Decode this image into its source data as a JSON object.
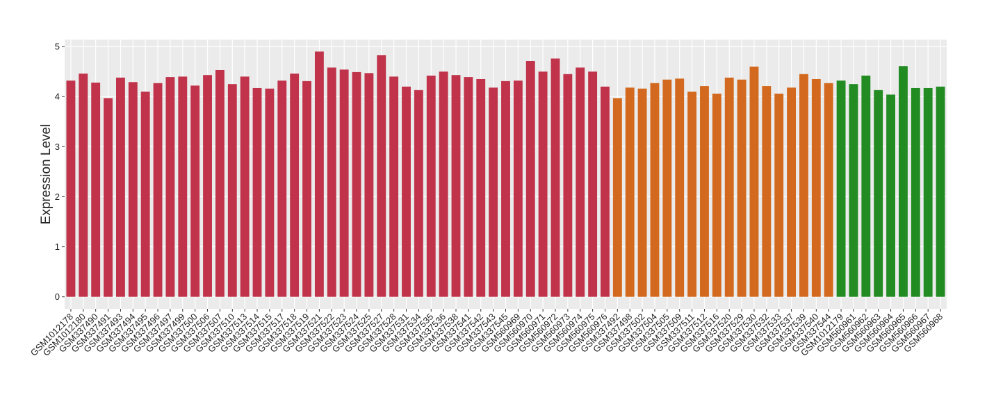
{
  "chart_data": {
    "type": "bar",
    "y_label": "Expression Level",
    "categories": [
      "GSM1012178",
      "GSM1012180",
      "GSM337490",
      "GSM337491",
      "GSM337493",
      "GSM337494",
      "GSM337495",
      "GSM337496",
      "GSM337497",
      "GSM337499",
      "GSM337500",
      "GSM337506",
      "GSM337507",
      "GSM337510",
      "GSM337513",
      "GSM337514",
      "GSM337515",
      "GSM337517",
      "GSM337518",
      "GSM337519",
      "GSM337521",
      "GSM337522",
      "GSM337523",
      "GSM337524",
      "GSM337525",
      "GSM337527",
      "GSM337528",
      "GSM337531",
      "GSM337534",
      "GSM337535",
      "GSM337536",
      "GSM337538",
      "GSM337541",
      "GSM337542",
      "GSM337543",
      "GSM337545",
      "GSM560969",
      "GSM560970",
      "GSM560971",
      "GSM560972",
      "GSM560973",
      "GSM560974",
      "GSM560975",
      "GSM560976",
      "GSM337492",
      "GSM337498",
      "GSM337502",
      "GSM337504",
      "GSM337505",
      "GSM337509",
      "GSM337511",
      "GSM337512",
      "GSM337516",
      "GSM337520",
      "GSM337529",
      "GSM337530",
      "GSM337532",
      "GSM337533",
      "GSM337537",
      "GSM337539",
      "GSM337540",
      "GSM337544",
      "GSM1012179",
      "GSM560961",
      "GSM560962",
      "GSM560963",
      "GSM560964",
      "GSM560965",
      "GSM560966",
      "GSM560967",
      "GSM560968"
    ],
    "values": [
      4.32,
      4.46,
      4.28,
      3.97,
      4.38,
      4.29,
      4.1,
      4.27,
      4.39,
      4.4,
      4.22,
      4.43,
      4.53,
      4.25,
      4.4,
      4.17,
      4.16,
      4.32,
      4.46,
      4.31,
      4.9,
      4.58,
      4.54,
      4.49,
      4.47,
      4.83,
      4.4,
      4.2,
      4.13,
      4.42,
      4.5,
      4.43,
      4.39,
      4.35,
      4.18,
      4.31,
      4.32,
      4.71,
      4.5,
      4.76,
      4.45,
      4.58,
      4.5,
      4.2,
      3.97,
      4.18,
      4.16,
      4.27,
      4.34,
      4.36,
      4.1,
      4.21,
      4.06,
      4.38,
      4.34,
      4.6,
      4.21,
      4.06,
      4.18,
      4.45,
      4.35,
      4.27,
      4.32,
      4.25,
      4.42,
      4.13,
      4.04,
      4.61,
      4.17,
      4.17,
      4.2
    ],
    "colors": [
      "#c0334a",
      "#c0334a",
      "#c0334a",
      "#c0334a",
      "#c0334a",
      "#c0334a",
      "#c0334a",
      "#c0334a",
      "#c0334a",
      "#c0334a",
      "#c0334a",
      "#c0334a",
      "#c0334a",
      "#c0334a",
      "#c0334a",
      "#c0334a",
      "#c0334a",
      "#c0334a",
      "#c0334a",
      "#c0334a",
      "#c0334a",
      "#c0334a",
      "#c0334a",
      "#c0334a",
      "#c0334a",
      "#c0334a",
      "#c0334a",
      "#c0334a",
      "#c0334a",
      "#c0334a",
      "#c0334a",
      "#c0334a",
      "#c0334a",
      "#c0334a",
      "#c0334a",
      "#c0334a",
      "#c0334a",
      "#c0334a",
      "#c0334a",
      "#c0334a",
      "#c0334a",
      "#c0334a",
      "#c0334a",
      "#c0334a",
      "#d2691e",
      "#d2691e",
      "#d2691e",
      "#d2691e",
      "#d2691e",
      "#d2691e",
      "#d2691e",
      "#d2691e",
      "#d2691e",
      "#d2691e",
      "#d2691e",
      "#d2691e",
      "#d2691e",
      "#d2691e",
      "#d2691e",
      "#d2691e",
      "#d2691e",
      "#d2691e",
      "#228b22",
      "#228b22",
      "#228b22",
      "#228b22",
      "#228b22",
      "#228b22",
      "#228b22",
      "#228b22",
      "#228b22"
    ],
    "ylim": [
      -0.24,
      5.14
    ],
    "yticks": [
      0,
      1,
      2,
      3,
      4,
      5
    ],
    "grid": true
  }
}
